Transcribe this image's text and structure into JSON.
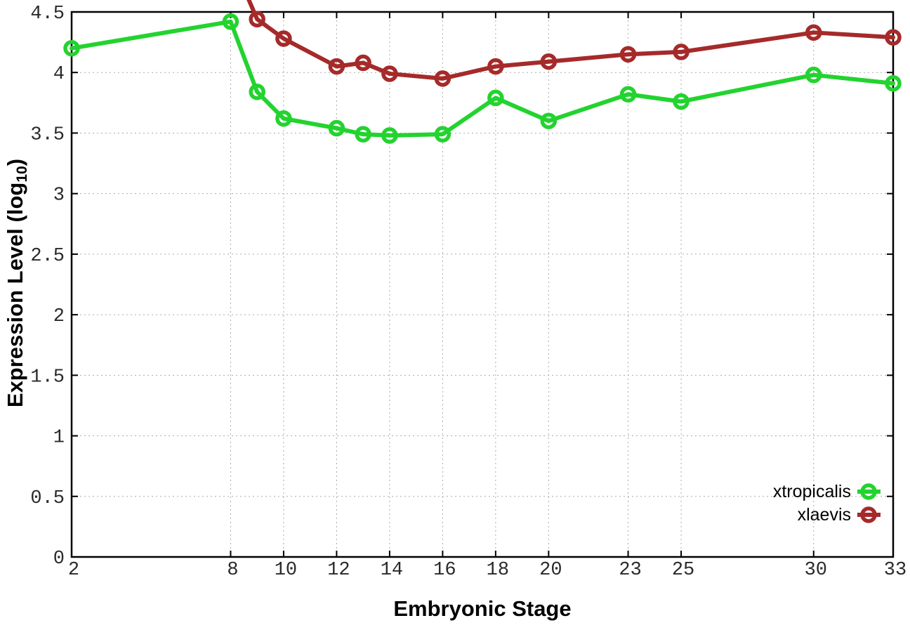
{
  "figure": {
    "background": "#ffffff",
    "axis_color": "#000000",
    "grid_color": "#aaaaaa",
    "tick_label_color": "#2a2a2a"
  },
  "chart_data": {
    "type": "line",
    "title": "",
    "xlabel": "Embryonic Stage",
    "ylabel": "Expression Level (log10)",
    "ylabel_rich": {
      "main": "Expression Level (log",
      "sub": "10",
      "close": ")"
    },
    "xlim": [
      2,
      33
    ],
    "ylim": [
      0,
      4.5
    ],
    "grid": "dotted grid on both axes",
    "legend_position": "inside bottom-right",
    "xticks": [
      "2",
      "8",
      "10",
      "12",
      "14",
      "16",
      "18",
      "20",
      "23",
      "25",
      "30",
      "33"
    ],
    "yticks": [
      "0",
      "0.5",
      "1",
      "1.5",
      "2",
      "2.5",
      "3",
      "3.5",
      "4",
      "4.5"
    ],
    "series": [
      {
        "name": "xtropicalis",
        "color": "#23d32f",
        "marker": "open-circle",
        "x": [
          2,
          8,
          9,
          10,
          12,
          13,
          14,
          16,
          18,
          20,
          23,
          25,
          30,
          33
        ],
        "values": [
          4.2,
          4.42,
          3.84,
          3.62,
          3.54,
          3.49,
          3.48,
          3.49,
          3.79,
          3.6,
          3.82,
          3.76,
          3.98,
          3.91
        ]
      },
      {
        "name": "xlaevis",
        "color": "#a52a2a",
        "marker": "open-circle",
        "x": [
          9,
          10,
          12,
          13,
          14,
          16,
          18,
          20,
          23,
          25,
          30,
          33
        ],
        "values": [
          4.44,
          4.28,
          4.05,
          4.08,
          3.99,
          3.95,
          4.05,
          4.09,
          4.15,
          4.17,
          4.33,
          4.29
        ],
        "line_enters_from_above_top_axis": true
      }
    ]
  }
}
